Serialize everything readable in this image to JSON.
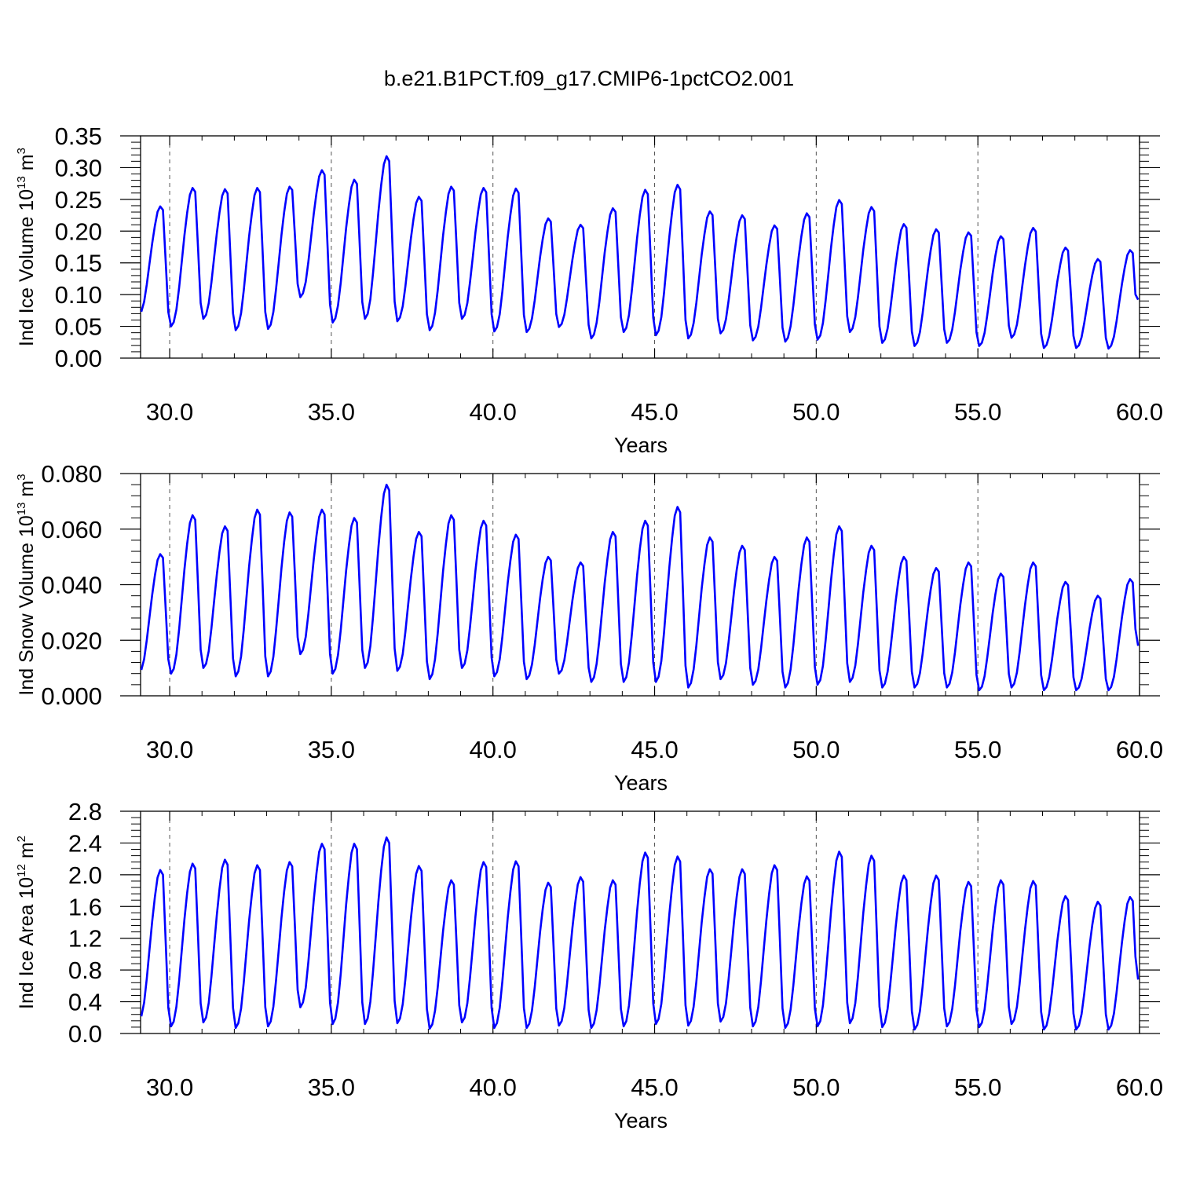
{
  "figure": {
    "title": "b.e21.B1PCT.f09_g17.CMIP6-1pctCO2.001",
    "line_color": "#0000ff",
    "axis_color": "#000000",
    "grid_color": "#555555"
  },
  "chart_data": [
    {
      "type": "line",
      "xlabel": "Years",
      "ylabel": {
        "main": "Ind Ice Volume 10",
        "exp": "13",
        "unit": " m",
        "unit_exp": "3"
      },
      "xlim": [
        29.1,
        60.0
      ],
      "ylim": [
        0.0,
        0.35
      ],
      "xticks": [
        "30.0",
        "35.0",
        "40.0",
        "45.0",
        "50.0",
        "55.0",
        "60.0"
      ],
      "xtick_values": [
        30,
        35,
        40,
        45,
        50,
        55,
        60
      ],
      "yticks": [
        "0.00",
        "0.05",
        "0.10",
        "0.15",
        "0.20",
        "0.25",
        "0.30",
        "0.35"
      ],
      "ytick_values": [
        0.0,
        0.05,
        0.1,
        0.15,
        0.2,
        0.25,
        0.3,
        0.35
      ],
      "grid": "dashed vertical at major x ticks",
      "series": [
        {
          "x_start": 29.0417,
          "x_step": 0.08333,
          "maxima": [
            0.239,
            0.268,
            0.266,
            0.268,
            0.27,
            0.296,
            0.281,
            0.318,
            0.254,
            0.27,
            0.268,
            0.267,
            0.22,
            0.21,
            0.236,
            0.265,
            0.273,
            0.231,
            0.225,
            0.209,
            0.228,
            0.249,
            0.238,
            0.211,
            0.203,
            0.198,
            0.192,
            0.205,
            0.174,
            0.156,
            0.17
          ],
          "minima": [
            0.068,
            0.05,
            0.062,
            0.044,
            0.046,
            0.096,
            0.056,
            0.062,
            0.058,
            0.044,
            0.062,
            0.042,
            0.041,
            0.049,
            0.031,
            0.041,
            0.036,
            0.031,
            0.039,
            0.028,
            0.026,
            0.029,
            0.041,
            0.024,
            0.019,
            0.024,
            0.019,
            0.032,
            0.016,
            0.016,
            0.015
          ],
          "first_value": 0.102,
          "last_value": 0.092
        }
      ]
    },
    {
      "type": "line",
      "xlabel": "Years",
      "ylabel": {
        "main": "Ind Snow Volume 10",
        "exp": "13",
        "unit": " m",
        "unit_exp": "3"
      },
      "xlim": [
        29.1,
        60.0
      ],
      "ylim": [
        0.0,
        0.08
      ],
      "xticks": [
        "30.0",
        "35.0",
        "40.0",
        "45.0",
        "50.0",
        "55.0",
        "60.0"
      ],
      "xtick_values": [
        30,
        35,
        40,
        45,
        50,
        55,
        60
      ],
      "yticks": [
        "0.000",
        "0.020",
        "0.040",
        "0.060",
        "0.080"
      ],
      "ytick_values": [
        0.0,
        0.02,
        0.04,
        0.06,
        0.08
      ],
      "grid": "dashed vertical at major x ticks",
      "series": [
        {
          "x_start": 29.0417,
          "x_step": 0.08333,
          "maxima": [
            0.051,
            0.065,
            0.061,
            0.067,
            0.066,
            0.067,
            0.064,
            0.076,
            0.059,
            0.065,
            0.063,
            0.058,
            0.05,
            0.048,
            0.059,
            0.063,
            0.068,
            0.057,
            0.054,
            0.05,
            0.057,
            0.061,
            0.054,
            0.05,
            0.046,
            0.048,
            0.044,
            0.048,
            0.041,
            0.036,
            0.042
          ],
          "minima": [
            0.008,
            0.008,
            0.01,
            0.007,
            0.007,
            0.015,
            0.008,
            0.01,
            0.009,
            0.006,
            0.01,
            0.007,
            0.006,
            0.008,
            0.005,
            0.005,
            0.005,
            0.003,
            0.006,
            0.004,
            0.003,
            0.004,
            0.005,
            0.003,
            0.003,
            0.003,
            0.002,
            0.003,
            0.002,
            0.002,
            0.002
          ],
          "first_value": 0.011,
          "last_value": 0.018
        }
      ]
    },
    {
      "type": "line",
      "xlabel": "Years",
      "ylabel": {
        "main": "Ind Ice Area 10",
        "exp": "12",
        "unit": " m",
        "unit_exp": "2"
      },
      "xlim": [
        29.1,
        60.0
      ],
      "ylim": [
        0.0,
        2.8
      ],
      "xticks": [
        "30.0",
        "35.0",
        "40.0",
        "45.0",
        "50.0",
        "55.0",
        "60.0"
      ],
      "xtick_values": [
        30,
        35,
        40,
        45,
        50,
        55,
        60
      ],
      "yticks": [
        "0.0",
        "0.4",
        "0.8",
        "1.2",
        "1.6",
        "2.0",
        "2.4",
        "2.8"
      ],
      "ytick_values": [
        0.0,
        0.4,
        0.8,
        1.2,
        1.6,
        2.0,
        2.4,
        2.8
      ],
      "grid": "dashed vertical at major x ticks",
      "series": [
        {
          "x_start": 29.0417,
          "x_step": 0.08333,
          "maxima": [
            2.06,
            2.14,
            2.19,
            2.12,
            2.16,
            2.39,
            2.39,
            2.47,
            2.11,
            1.93,
            2.16,
            2.17,
            1.9,
            1.97,
            1.93,
            2.28,
            2.23,
            2.07,
            2.07,
            2.12,
            1.98,
            2.29,
            2.24,
            1.99,
            1.99,
            1.91,
            1.93,
            1.92,
            1.73,
            1.66,
            1.72
          ],
          "minima": [
            0.16,
            0.09,
            0.14,
            0.07,
            0.09,
            0.33,
            0.12,
            0.12,
            0.13,
            0.06,
            0.14,
            0.07,
            0.07,
            0.1,
            0.07,
            0.09,
            0.12,
            0.1,
            0.15,
            0.09,
            0.07,
            0.09,
            0.13,
            0.08,
            0.05,
            0.09,
            0.08,
            0.12,
            0.05,
            0.05,
            0.05
          ],
          "first_value": 0.32,
          "last_value": 0.68
        }
      ]
    }
  ]
}
